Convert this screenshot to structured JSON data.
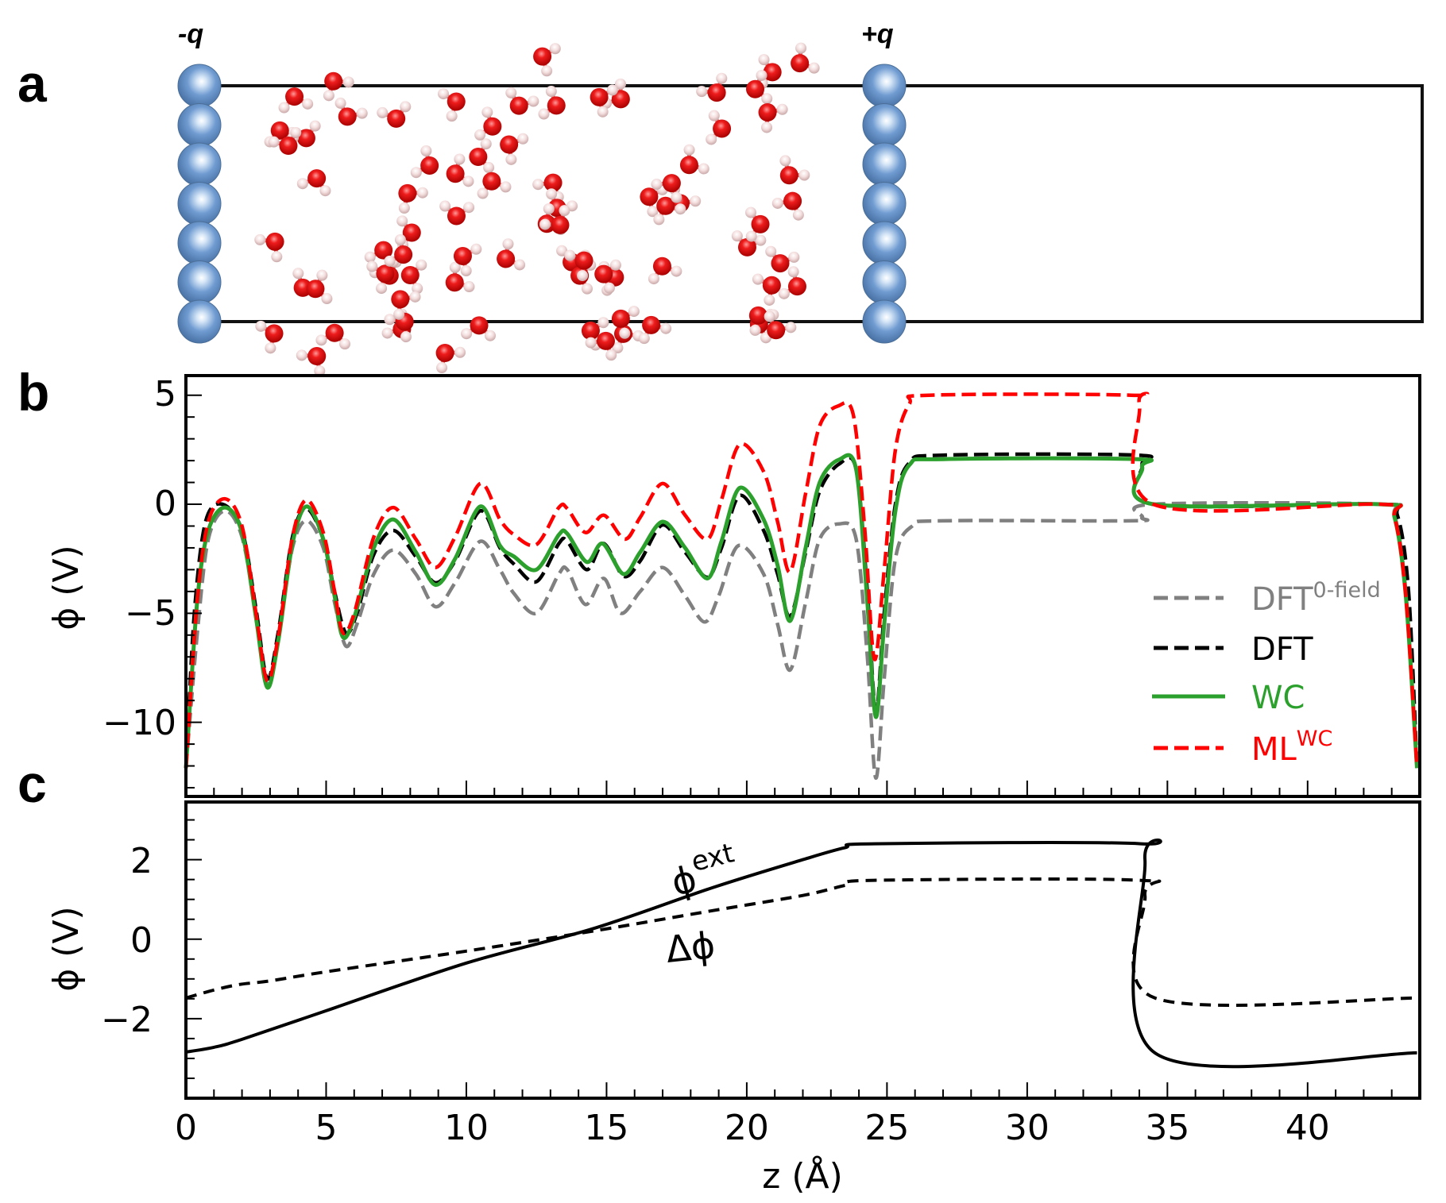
{
  "figure": {
    "panel_labels": [
      "a",
      "b",
      "c"
    ],
    "panel_a": {
      "left_charge_label": "-q",
      "right_charge_label": "+q",
      "colors": {
        "electrode": "#6f9bd1",
        "oxygen": "#e01010",
        "hydrogen": "#f2d6d6",
        "cell_line": "#000000"
      }
    }
  },
  "chart_data": [
    {
      "panel": "b",
      "type": "line",
      "title": "",
      "xlabel": "z (Å)",
      "ylabel": "ϕ (V)",
      "xlim": [
        0,
        44
      ],
      "ylim": [
        -13.4,
        5.9
      ],
      "xticks": [
        0,
        5,
        10,
        15,
        20,
        25,
        30,
        35,
        40
      ],
      "yticks": [
        5,
        0,
        -5,
        -10
      ],
      "ytick_labels": [
        "5",
        "0",
        "−5",
        "−10"
      ],
      "grid": false,
      "legend_position": "center-right",
      "series": [
        {
          "name": "DFT",
          "name_sup": "0-field",
          "style": "dashed",
          "color": "#808080",
          "points": [
            [
              0,
              -12.1
            ],
            [
              0.4,
              -6
            ],
            [
              0.8,
              -1.6
            ],
            [
              1.4,
              -0.3
            ],
            [
              2.0,
              -1.5
            ],
            [
              2.5,
              -5
            ],
            [
              2.9,
              -8.2
            ],
            [
              3.3,
              -6
            ],
            [
              3.8,
              -2
            ],
            [
              4.3,
              -0.75
            ],
            [
              4.9,
              -2
            ],
            [
              5.3,
              -4.5
            ],
            [
              5.7,
              -6.5
            ],
            [
              6.1,
              -5.5
            ],
            [
              6.7,
              -3.2
            ],
            [
              7.4,
              -2.1
            ],
            [
              8.2,
              -3.2
            ],
            [
              8.9,
              -4.7
            ],
            [
              9.6,
              -3.6
            ],
            [
              10.5,
              -1.7
            ],
            [
              11.2,
              -3.0
            ],
            [
              11.7,
              -4.1
            ],
            [
              12.5,
              -5.0
            ],
            [
              13.3,
              -3.2
            ],
            [
              13.6,
              -3.0
            ],
            [
              14.25,
              -4.6
            ],
            [
              14.9,
              -3.4
            ],
            [
              15.5,
              -5.0
            ],
            [
              16.2,
              -4.0
            ],
            [
              17.0,
              -2.9
            ],
            [
              17.8,
              -4.2
            ],
            [
              18.5,
              -5.4
            ],
            [
              19.0,
              -4.2
            ],
            [
              19.7,
              -1.9
            ],
            [
              20.6,
              -3.2
            ],
            [
              21.1,
              -5.5
            ],
            [
              21.55,
              -7.6
            ],
            [
              22.1,
              -4.5
            ],
            [
              22.6,
              -1.6
            ],
            [
              23.3,
              -0.9
            ],
            [
              23.9,
              -1.6
            ],
            [
              24.3,
              -7
            ],
            [
              24.6,
              -12.55
            ],
            [
              24.9,
              -8
            ],
            [
              25.3,
              -2.5
            ],
            [
              25.9,
              -1.0
            ],
            [
              27,
              -0.76
            ],
            [
              33.7,
              -0.76
            ],
            [
              34.1,
              -0.6
            ],
            [
              34.5,
              0
            ],
            [
              42.6,
              0
            ],
            [
              43.1,
              -0.5
            ],
            [
              43.5,
              -4
            ],
            [
              43.9,
              -12.1
            ]
          ]
        },
        {
          "name": "DFT",
          "name_sup": "",
          "style": "dashed",
          "color": "#000000",
          "points": [
            [
              0,
              -12.1
            ],
            [
              0.3,
              -5
            ],
            [
              0.7,
              -0.8
            ],
            [
              1.3,
              0
            ],
            [
              2.0,
              -1.2
            ],
            [
              2.5,
              -4.8
            ],
            [
              2.9,
              -8.0
            ],
            [
              3.3,
              -5.8
            ],
            [
              3.8,
              -1.5
            ],
            [
              4.3,
              -0.2
            ],
            [
              4.9,
              -1.6
            ],
            [
              5.3,
              -4
            ],
            [
              5.7,
              -5.9
            ],
            [
              6.1,
              -5
            ],
            [
              6.7,
              -2.3
            ],
            [
              7.4,
              -1.2
            ],
            [
              8.2,
              -2.4
            ],
            [
              8.9,
              -3.6
            ],
            [
              9.6,
              -2.6
            ],
            [
              10.5,
              -0.3
            ],
            [
              11.2,
              -2.0
            ],
            [
              11.7,
              -2.75
            ],
            [
              12.5,
              -3.55
            ],
            [
              13.3,
              -1.8
            ],
            [
              13.6,
              -1.7
            ],
            [
              14.3,
              -3.0
            ],
            [
              14.9,
              -1.8
            ],
            [
              15.6,
              -3.3
            ],
            [
              16.2,
              -2.6
            ],
            [
              17.0,
              -0.95
            ],
            [
              17.8,
              -2.2
            ],
            [
              18.6,
              -3.35
            ],
            [
              19.1,
              -2.0
            ],
            [
              19.75,
              0.4
            ],
            [
              20.6,
              -1.2
            ],
            [
              21.1,
              -3.2
            ],
            [
              21.55,
              -5.15
            ],
            [
              22.1,
              -2.2
            ],
            [
              22.6,
              0.6
            ],
            [
              23.3,
              1.85
            ],
            [
              23.9,
              1.6
            ],
            [
              24.3,
              -4
            ],
            [
              24.6,
              -9.5
            ],
            [
              24.9,
              -5
            ],
            [
              25.3,
              0
            ],
            [
              25.8,
              1.9
            ],
            [
              27,
              2.25
            ],
            [
              33.9,
              2.25
            ],
            [
              34.1,
              1.8
            ],
            [
              34.5,
              0
            ],
            [
              42.6,
              0
            ],
            [
              43.2,
              -0.5
            ],
            [
              43.6,
              -4
            ],
            [
              43.9,
              -12.1
            ]
          ]
        },
        {
          "name": "WC",
          "name_sup": "",
          "style": "solid",
          "color": "#2ca02c",
          "points": [
            [
              0,
              -12.1
            ],
            [
              0.4,
              -4.5
            ],
            [
              0.8,
              -1.2
            ],
            [
              1.4,
              -0.15
            ],
            [
              2.0,
              -1.3
            ],
            [
              2.5,
              -5.2
            ],
            [
              2.9,
              -8.4
            ],
            [
              3.3,
              -6.2
            ],
            [
              3.8,
              -1.8
            ],
            [
              4.3,
              -0.1
            ],
            [
              4.9,
              -1.6
            ],
            [
              5.3,
              -4.2
            ],
            [
              5.6,
              -6.1
            ],
            [
              6.0,
              -5.2
            ],
            [
              6.7,
              -2.0
            ],
            [
              7.4,
              -0.7
            ],
            [
              8.2,
              -2.2
            ],
            [
              8.9,
              -3.7
            ],
            [
              9.6,
              -2.5
            ],
            [
              10.5,
              -0.1
            ],
            [
              11.2,
              -1.9
            ],
            [
              11.7,
              -2.4
            ],
            [
              12.5,
              -3.0
            ],
            [
              13.3,
              -1.4
            ],
            [
              13.6,
              -1.35
            ],
            [
              14.3,
              -2.65
            ],
            [
              14.86,
              -1.8
            ],
            [
              15.6,
              -3.2
            ],
            [
              16.2,
              -2.2
            ],
            [
              17.0,
              -0.8
            ],
            [
              17.8,
              -2.0
            ],
            [
              18.6,
              -3.4
            ],
            [
              19.1,
              -1.7
            ],
            [
              19.75,
              0.75
            ],
            [
              20.6,
              -0.7
            ],
            [
              21.1,
              -2.8
            ],
            [
              21.55,
              -5.35
            ],
            [
              22.1,
              -2.0
            ],
            [
              22.6,
              1.0
            ],
            [
              23.3,
              2.05
            ],
            [
              23.9,
              1.6
            ],
            [
              24.3,
              -4.5
            ],
            [
              24.6,
              -9.75
            ],
            [
              24.9,
              -5.5
            ],
            [
              25.3,
              -0.3
            ],
            [
              25.8,
              1.8
            ],
            [
              27,
              2.07
            ],
            [
              33.9,
              2.07
            ],
            [
              34.1,
              1.7
            ],
            [
              34.5,
              0
            ],
            [
              42.6,
              0
            ],
            [
              43.1,
              -0.6
            ],
            [
              43.5,
              -4.2
            ],
            [
              43.9,
              -12.1
            ]
          ]
        },
        {
          "name": "ML",
          "name_sup": "WC",
          "style": "dashed",
          "color": "#ff0000",
          "points": [
            [
              0,
              -12.1
            ],
            [
              0.4,
              -4.5
            ],
            [
              0.8,
              -0.8
            ],
            [
              1.4,
              0.25
            ],
            [
              2.0,
              -1.0
            ],
            [
              2.5,
              -5.0
            ],
            [
              2.9,
              -8.1
            ],
            [
              3.3,
              -6.0
            ],
            [
              3.8,
              -1.5
            ],
            [
              4.3,
              0.2
            ],
            [
              4.9,
              -1.3
            ],
            [
              5.3,
              -4.0
            ],
            [
              5.6,
              -5.9
            ],
            [
              6.0,
              -5.0
            ],
            [
              6.7,
              -1.5
            ],
            [
              7.4,
              -0.15
            ],
            [
              8.2,
              -1.6
            ],
            [
              8.9,
              -2.9
            ],
            [
              9.6,
              -1.5
            ],
            [
              10.5,
              0.95
            ],
            [
              11.2,
              -0.7
            ],
            [
              11.7,
              -1.4
            ],
            [
              12.5,
              -1.85
            ],
            [
              13.3,
              -0.15
            ],
            [
              13.6,
              -0.2
            ],
            [
              14.25,
              -1.3
            ],
            [
              14.9,
              -0.5
            ],
            [
              15.65,
              -1.6
            ],
            [
              16.2,
              -0.6
            ],
            [
              17.0,
              0.95
            ],
            [
              17.8,
              -0.5
            ],
            [
              18.6,
              -1.6
            ],
            [
              19.1,
              0.2
            ],
            [
              19.75,
              2.75
            ],
            [
              20.6,
              1.5
            ],
            [
              21.1,
              -0.8
            ],
            [
              21.55,
              -3.1
            ],
            [
              22.1,
              0.5
            ],
            [
              22.6,
              3.6
            ],
            [
              23.25,
              4.5
            ],
            [
              23.8,
              4.1
            ],
            [
              24.2,
              -1
            ],
            [
              24.55,
              -7.1
            ],
            [
              24.9,
              -3
            ],
            [
              25.3,
              2.5
            ],
            [
              25.8,
              4.6
            ],
            [
              26.5,
              5.0
            ],
            [
              33.7,
              5.0
            ],
            [
              34.0,
              4.6
            ],
            [
              34.5,
              0
            ],
            [
              42.6,
              0
            ],
            [
              43.1,
              -0.6
            ],
            [
              43.5,
              -4.2
            ],
            [
              43.9,
              -12.1
            ]
          ]
        }
      ]
    },
    {
      "panel": "c",
      "type": "line",
      "title": "",
      "xlabel": "z (Å)",
      "ylabel": "ϕ (V)",
      "xlim": [
        0,
        44
      ],
      "ylim": [
        -4.0,
        3.45
      ],
      "xticks": [
        0,
        5,
        10,
        15,
        20,
        25,
        30,
        35,
        40
      ],
      "xtick_labels": [
        "0",
        "5",
        "10",
        "15",
        "20",
        "25",
        "30",
        "35",
        "40"
      ],
      "yticks": [
        2,
        0,
        -2
      ],
      "ytick_labels": [
        "2",
        "0",
        "−2"
      ],
      "grid": false,
      "annotations": [
        {
          "text": "ϕ",
          "sup": "ext",
          "at": [
            17.5,
            1.6
          ]
        },
        {
          "text": "Δϕ",
          "sup": "",
          "at": [
            17.0,
            -0.6
          ]
        }
      ],
      "series": [
        {
          "name": "ϕext",
          "style": "solid",
          "color": "#000000",
          "points": [
            [
              0,
              -2.84
            ],
            [
              1,
              -2.72
            ],
            [
              2,
              -2.52
            ],
            [
              5,
              -1.8
            ],
            [
              10,
              -0.6
            ],
            [
              14.5,
              0.26
            ],
            [
              18.8,
              1.3
            ],
            [
              22,
              2.0
            ],
            [
              23.5,
              2.3
            ],
            [
              24.55,
              2.4
            ],
            [
              34.05,
              2.4
            ],
            [
              34.2,
              2.0
            ],
            [
              34.55,
              -2.86
            ],
            [
              43.9,
              -2.86
            ]
          ]
        },
        {
          "name": "Δϕ",
          "style": "dashed",
          "color": "#000000",
          "points": [
            [
              0,
              -1.48
            ],
            [
              1,
              -1.28
            ],
            [
              1.9,
              -1.14
            ],
            [
              3,
              -1.05
            ],
            [
              5,
              -0.82
            ],
            [
              10,
              -0.3
            ],
            [
              14.5,
              0.2
            ],
            [
              18.8,
              0.72
            ],
            [
              22,
              1.1
            ],
            [
              23.5,
              1.35
            ],
            [
              24.55,
              1.48
            ],
            [
              34.0,
              1.48
            ],
            [
              34.2,
              1.1
            ],
            [
              34.55,
              -1.48
            ],
            [
              43.9,
              -1.48
            ]
          ]
        }
      ]
    }
  ]
}
